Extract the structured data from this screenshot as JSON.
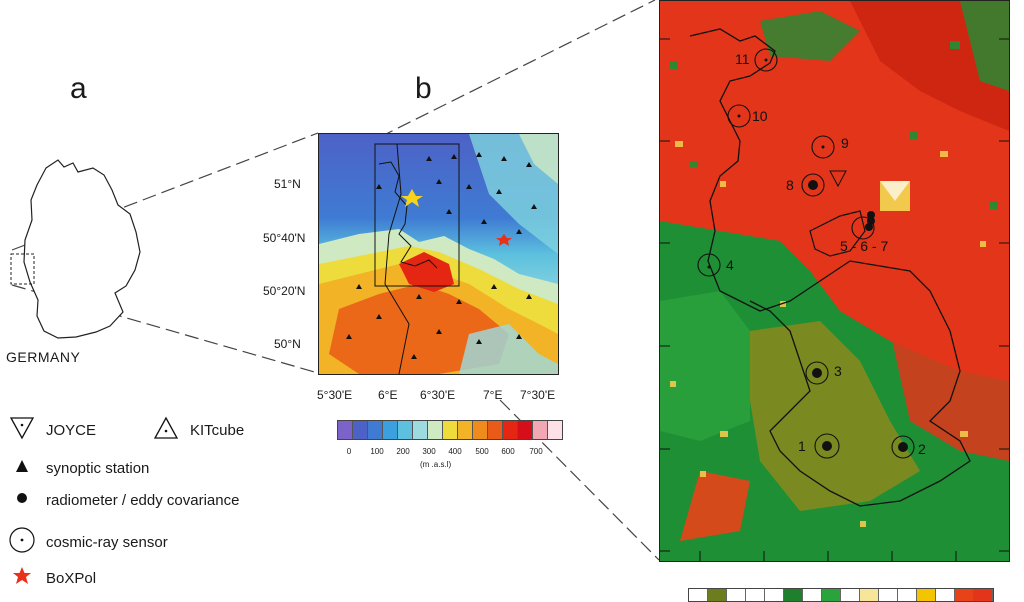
{
  "panels": {
    "a": "a",
    "b": "b"
  },
  "country_label": "GERMANY",
  "lat_labels": [
    "51°N",
    "50°40'N",
    "50°20'N",
    "50°N"
  ],
  "lon_labels": [
    "5°30'E",
    "6°E",
    "6°30'E",
    "7°E",
    "7°30'E"
  ],
  "colorbar": {
    "ticks": [
      "0",
      "100",
      "200",
      "300",
      "400",
      "500",
      "600",
      "700"
    ],
    "unit": "(m .a.s.l)",
    "colors": [
      "#7b63c9",
      "#4d62c6",
      "#3f7bd3",
      "#3ba0dd",
      "#5cc0de",
      "#9edbe0",
      "#cfeac3",
      "#eddc3c",
      "#f2b326",
      "#ef8b1d",
      "#ea5a18",
      "#e52612",
      "#d60e1a",
      "#f1a7b4",
      "#fde1e6"
    ]
  },
  "legend": [
    {
      "symbol": "triangle-down-open-icon",
      "label": "JOYCE"
    },
    {
      "symbol": "triangle-up-open-icon",
      "label": "KITcube"
    },
    {
      "symbol": "triangle-filled-icon",
      "label": "synoptic station"
    },
    {
      "symbol": "dot-filled-icon",
      "label": "radiometer / eddy covariance"
    },
    {
      "symbol": "circle-dot-icon",
      "label": "cosmic-ray sensor"
    },
    {
      "symbol": "star-red-icon",
      "label": "BoXPol"
    }
  ],
  "sites": [
    "1",
    "2",
    "3",
    "4",
    "5 - 6 - 7",
    "8",
    "9",
    "10",
    "11"
  ],
  "land_cover_colors": [
    "#ffffff",
    "#6b7d1c",
    "#ffffff",
    "#ffffff",
    "#ffffff",
    "#1e7f2c",
    "#ffffff",
    "#2aa33c",
    "#ffffff",
    "#f7e69a",
    "#ffffff",
    "#ffffff",
    "#f2c500",
    "#ffffff",
    "#e84318",
    "#e2351a"
  ],
  "colors": {
    "land_red": "#e2351a",
    "land_darkred": "#c8210f",
    "forest_green": "#1f8f35",
    "olive": "#7a8a20",
    "yellow": "#f2c94c",
    "boxpol_red": "#e8301a",
    "joyce_yellow": "#f5d41b"
  }
}
